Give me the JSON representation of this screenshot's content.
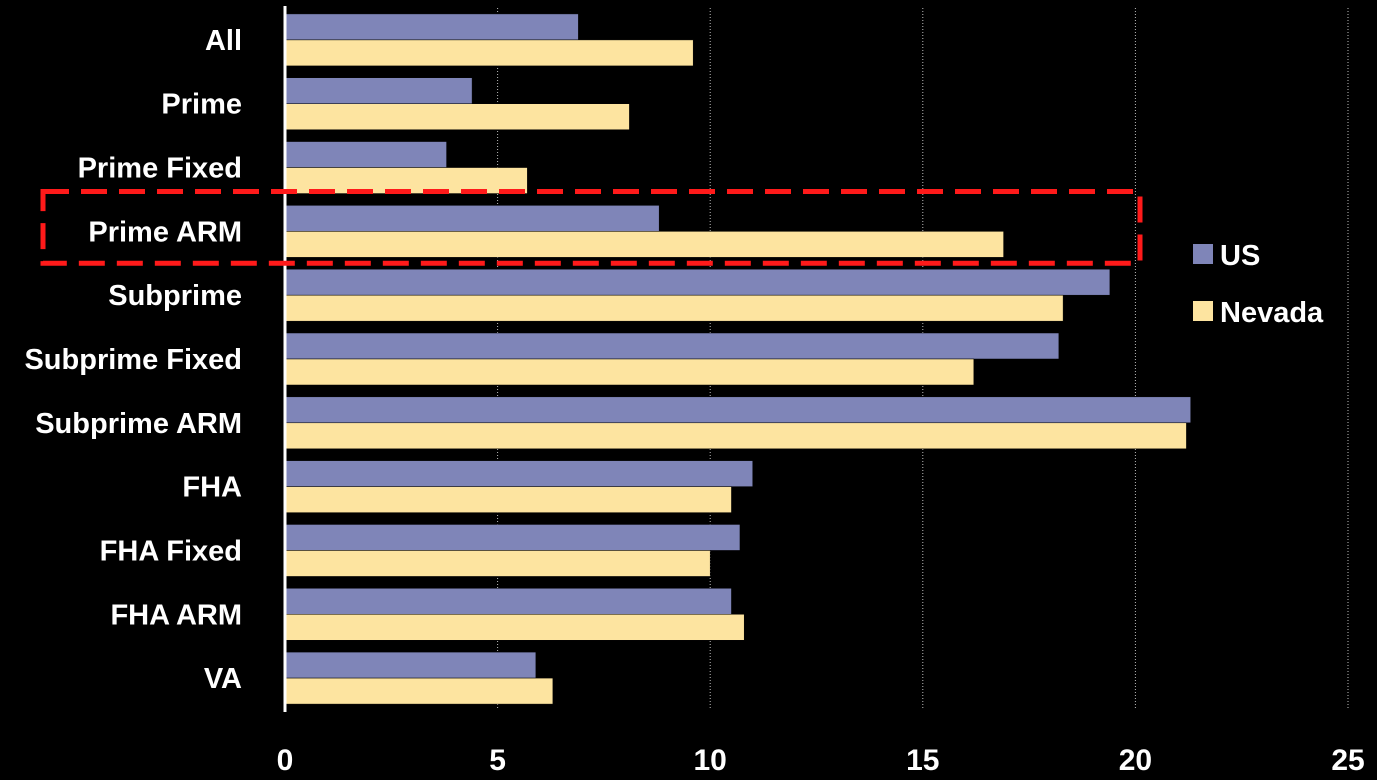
{
  "chart_data": {
    "type": "bar",
    "orientation": "horizontal",
    "categories": [
      "All",
      "Prime",
      "Prime Fixed",
      "Prime ARM",
      "Subprime",
      "Subprime Fixed",
      "Subprime ARM",
      "FHA",
      "FHA Fixed",
      "FHA ARM",
      "VA"
    ],
    "series": [
      {
        "name": "US",
        "color": "#7f85b8",
        "values": [
          6.9,
          4.4,
          3.8,
          8.8,
          19.4,
          18.2,
          21.3,
          11.0,
          10.7,
          10.5,
          5.9
        ]
      },
      {
        "name": "Nevada",
        "color": "#fde4a0",
        "values": [
          9.6,
          8.1,
          5.7,
          16.9,
          18.3,
          16.2,
          21.2,
          10.5,
          10.0,
          10.8,
          6.3
        ]
      }
    ],
    "xlim": [
      0,
      25
    ],
    "xticks": [
      "0",
      "5",
      "10",
      "15",
      "20",
      "25"
    ],
    "gridlines": "vertical dotted",
    "legend_position": "right",
    "highlight": {
      "category": "Prime ARM",
      "style": "red dashed box"
    },
    "title": "",
    "xlabel": "",
    "ylabel": ""
  }
}
